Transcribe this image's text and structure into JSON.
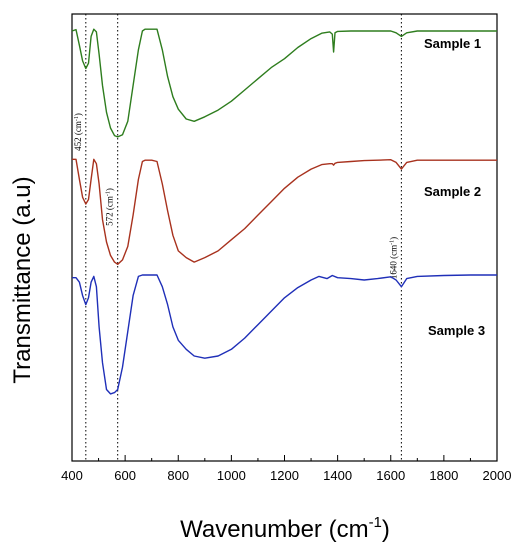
{
  "chart_data": {
    "type": "line",
    "title": "",
    "xlabel": "Wavenumber (cm",
    "xlabel_sup": "-1",
    "xlabel_close": ")",
    "ylabel": "Transmittance (a.u)",
    "xlim": [
      400,
      2000
    ],
    "ylim": [
      0,
      100
    ],
    "xticks": [
      400,
      600,
      800,
      1000,
      1200,
      1400,
      1600,
      1800,
      2000
    ],
    "grid": false,
    "legend": "series labels at right end of each curve",
    "annotations": [
      {
        "x": 452,
        "label": "452 (cm",
        "sup": "-1",
        "close": ")"
      },
      {
        "x": 572,
        "label": "572 (cm",
        "sup": "-1",
        "close": ")"
      },
      {
        "x": 1640,
        "label": "1640 (cm",
        "sup": "-1",
        "close": ")"
      }
    ],
    "series": [
      {
        "name": "Sample 1",
        "color": "#2e7d1e",
        "x": [
          400,
          415,
          428,
          440,
          452,
          462,
          472,
          482,
          492,
          502,
          515,
          530,
          545,
          560,
          572,
          590,
          610,
          630,
          650,
          665,
          675,
          690,
          700,
          720,
          740,
          760,
          780,
          800,
          830,
          860,
          900,
          950,
          1000,
          1050,
          1100,
          1150,
          1200,
          1250,
          1300,
          1340,
          1370,
          1380,
          1385,
          1390,
          1400,
          1450,
          1500,
          1550,
          1600,
          1620,
          1640,
          1660,
          1700,
          1800,
          1900,
          2000
        ],
        "y": [
          96.2,
          96.5,
          93,
          89.5,
          87.8,
          89,
          95,
          96.6,
          96,
          91,
          84,
          78,
          74.5,
          72.8,
          72.5,
          73,
          76,
          84,
          92,
          96.2,
          96.6,
          96.6,
          96.6,
          96.6,
          92,
          86,
          81.5,
          78.7,
          76.5,
          76,
          77,
          78.5,
          80.5,
          83,
          85.5,
          88,
          90,
          92.5,
          94.5,
          95.7,
          96,
          95.5,
          91.5,
          95.8,
          96.1,
          96.2,
          96.2,
          96.2,
          96.2,
          95.8,
          95,
          95.8,
          96.2,
          96.2,
          96.2,
          96.2
        ]
      },
      {
        "name": "Sample 2",
        "color": "#a8321e",
        "x": [
          400,
          415,
          428,
          440,
          452,
          462,
          472,
          482,
          492,
          502,
          515,
          530,
          545,
          560,
          572,
          590,
          610,
          630,
          650,
          665,
          675,
          690,
          700,
          720,
          740,
          760,
          780,
          800,
          830,
          860,
          900,
          950,
          1000,
          1050,
          1100,
          1150,
          1200,
          1250,
          1300,
          1340,
          1370,
          1380,
          1385,
          1390,
          1400,
          1450,
          1500,
          1550,
          1600,
          1620,
          1640,
          1660,
          1700,
          1800,
          1900,
          2000
        ],
        "y": [
          67.5,
          67.5,
          63,
          59,
          57.5,
          58.5,
          63,
          67.5,
          66.5,
          62,
          54,
          49,
          46,
          44.5,
          44,
          45,
          48,
          55,
          63,
          67,
          67.3,
          67.3,
          67.3,
          67,
          62,
          56,
          50.5,
          47,
          45.5,
          44.5,
          45.5,
          47,
          49.5,
          52,
          55,
          58,
          61,
          63.5,
          65.3,
          66.3,
          66.5,
          66.5,
          66.2,
          66.6,
          66.8,
          67,
          67.2,
          67.3,
          67.4,
          66.8,
          65.3,
          66.8,
          67.3,
          67.3,
          67.3,
          67.3
        ]
      },
      {
        "name": "Sample 3",
        "color": "#1f2fb8",
        "x": [
          400,
          415,
          428,
          440,
          452,
          462,
          472,
          482,
          492,
          502,
          515,
          530,
          545,
          560,
          572,
          590,
          610,
          630,
          650,
          665,
          675,
          690,
          700,
          720,
          740,
          760,
          780,
          800,
          830,
          860,
          900,
          950,
          1000,
          1050,
          1100,
          1150,
          1200,
          1250,
          1300,
          1330,
          1360,
          1380,
          1400,
          1450,
          1500,
          1550,
          1600,
          1620,
          1640,
          1660,
          1700,
          1800,
          1900,
          2000
        ],
        "y": [
          41,
          41,
          40,
          37,
          35,
          36.5,
          40,
          41.3,
          39,
          30,
          22,
          16,
          15,
          15.3,
          16,
          21,
          29,
          37,
          41.3,
          41.6,
          41.6,
          41.6,
          41.6,
          41.6,
          39,
          35,
          30,
          27,
          25,
          23.5,
          23,
          23.5,
          25,
          27.5,
          30.5,
          33.5,
          36.5,
          38.8,
          40.5,
          41.3,
          40.8,
          41.5,
          41,
          40.8,
          40.5,
          40.8,
          41.2,
          40.5,
          39,
          40.8,
          41.3,
          41.5,
          41.6,
          41.6
        ]
      }
    ]
  }
}
